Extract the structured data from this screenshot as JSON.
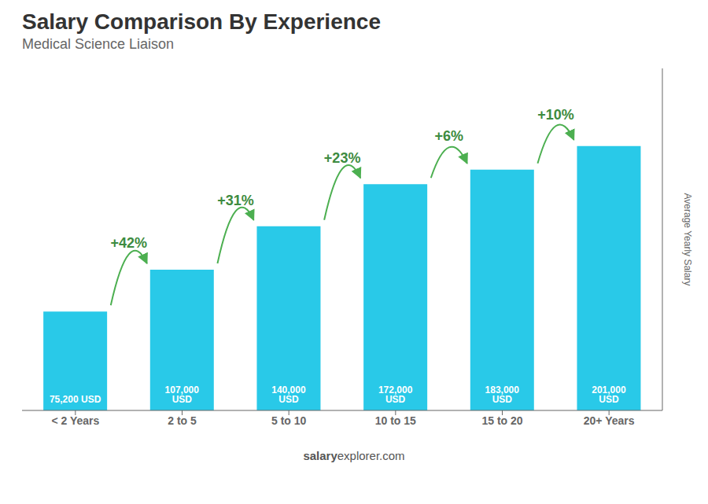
{
  "chart_data": {
    "type": "bar",
    "title": "Salary Comparison By Experience",
    "subtitle": "Medical Science Liaison",
    "ylabel": "Average Yearly Salary",
    "categories": [
      "< 2 Years",
      "2 to 5",
      "5 to 10",
      "10 to 15",
      "15 to 20",
      "20+ Years"
    ],
    "values": [
      75200,
      107000,
      140000,
      172000,
      183000,
      201000
    ],
    "value_labels": [
      "75,200 USD",
      "107,000 USD",
      "140,000 USD",
      "172,000 USD",
      "183,000 USD",
      "201,000 USD"
    ],
    "data_labels": true,
    "color": "#29c9e8",
    "ylim": [
      0,
      260000
    ],
    "tick_labels": "x",
    "grid": false,
    "annotations": [
      {
        "text": "+42%",
        "from": "< 2 Years",
        "to": "2 to 5"
      },
      {
        "text": "+31%",
        "from": "2 to 5",
        "to": "5 to 10"
      },
      {
        "text": "+23%",
        "from": "5 to 10",
        "to": "10 to 15"
      },
      {
        "text": "+6%",
        "from": "10 to 15",
        "to": "15 to 20"
      },
      {
        "text": "+10%",
        "from": "15 to 20",
        "to": "20+ Years"
      },
      {
        "text": "salary"
      },
      {
        "text": "explorer.com"
      }
    ]
  }
}
